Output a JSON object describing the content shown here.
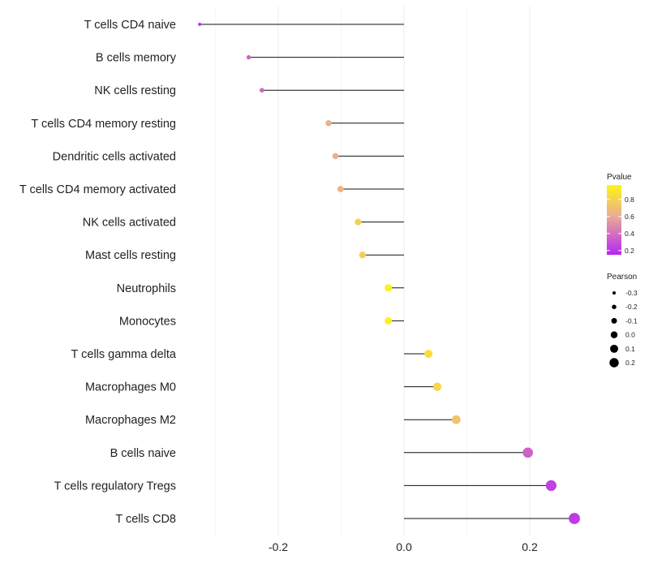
{
  "chart_data": {
    "type": "lollipop",
    "title": "",
    "xlabel": "",
    "ylabel": "",
    "xlim": [
      -0.3,
      0.3
    ],
    "x_ticks": [
      -0.2,
      0.0,
      0.2
    ],
    "x_tick_labels": [
      "-0.2",
      "0.0",
      "0.2"
    ],
    "categories": [
      "T cells CD4 naive",
      "B cells memory",
      "NK cells resting",
      "T cells CD4 memory resting",
      "Dendritic cells activated",
      "T cells CD4 memory activated",
      "NK cells activated",
      "Mast cells resting",
      "Neutrophils",
      "Monocytes",
      "T cells gamma delta",
      "Macrophages M0",
      "Macrophages M2",
      "B cells naive",
      "T cells regulatory  Tregs",
      "T cells CD8"
    ],
    "pearson": [
      -0.325,
      -0.247,
      -0.226,
      -0.12,
      -0.109,
      -0.101,
      -0.073,
      -0.066,
      -0.025,
      -0.025,
      0.039,
      0.053,
      0.083,
      0.197,
      0.234,
      0.271
    ],
    "pvalue": [
      0.2,
      0.35,
      0.38,
      0.62,
      0.63,
      0.65,
      0.78,
      0.78,
      0.95,
      0.95,
      0.85,
      0.82,
      0.72,
      0.35,
      0.25,
      0.22
    ],
    "legend_color": {
      "title": "Pvalue",
      "ticks": [
        0.8,
        0.6,
        0.4,
        0.2
      ],
      "tick_labels": [
        "0.8",
        "0.6",
        "0.4",
        "0.2"
      ],
      "range": [
        0.15,
        0.97
      ],
      "color_low": "#b726f5",
      "color_mid": "#e9ab95",
      "color_high": "#fff514"
    },
    "legend_size": {
      "title": "Pearson",
      "values": [
        -0.3,
        -0.2,
        -0.1,
        0.0,
        0.1,
        0.2
      ],
      "labels": [
        "-0.3",
        "-0.2",
        "-0.1",
        "0.0",
        "0.1",
        "0.2"
      ]
    },
    "legend_position": "right",
    "grid": true
  }
}
